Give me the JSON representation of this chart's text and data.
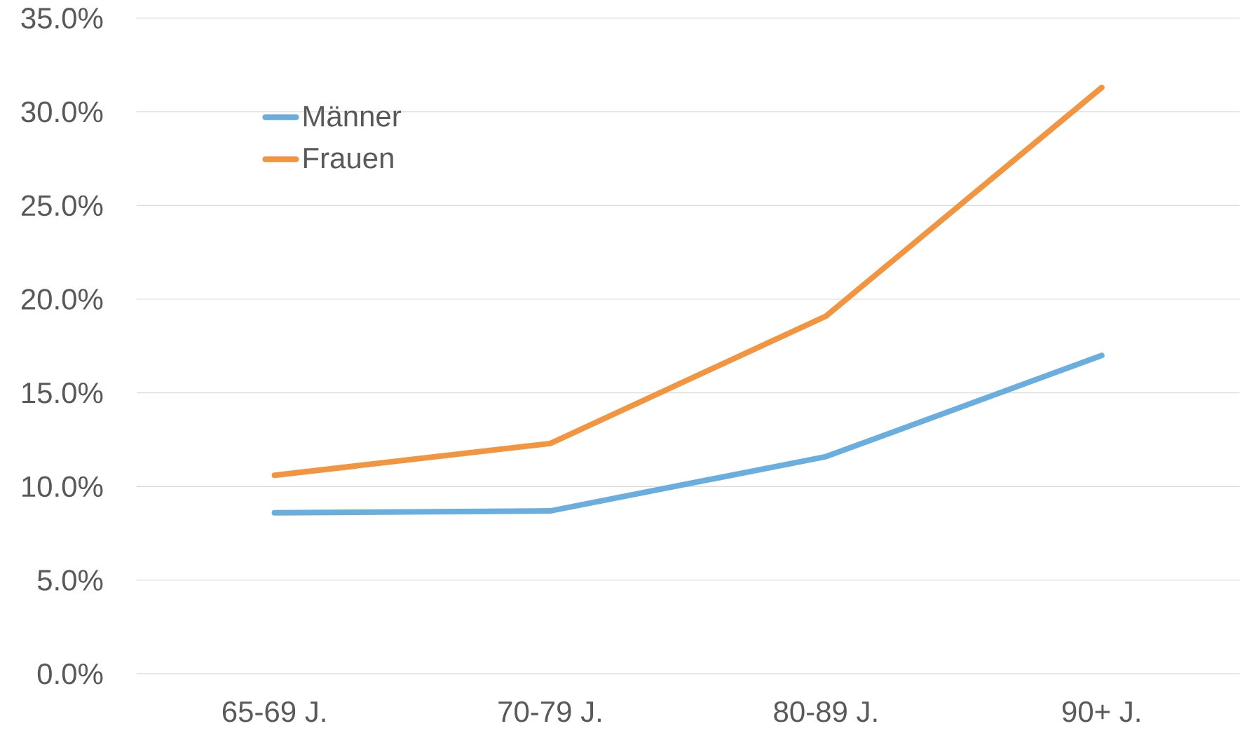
{
  "chart_data": {
    "type": "line",
    "categories": [
      "65-69 J.",
      "70-79 J.",
      "80-89 J.",
      "90+ J."
    ],
    "series": [
      {
        "name": "Männer",
        "color": "#6aaee0",
        "values": [
          8.6,
          8.7,
          11.6,
          17.0
        ]
      },
      {
        "name": "Frauen",
        "color": "#f39441",
        "values": [
          10.6,
          12.3,
          19.1,
          31.3
        ]
      }
    ],
    "ylim": [
      0,
      35
    ],
    "yticks": [
      {
        "value": 0,
        "label": "0.0%"
      },
      {
        "value": 5,
        "label": "5.0%"
      },
      {
        "value": 10,
        "label": "10.0%"
      },
      {
        "value": 15,
        "label": "15.0%"
      },
      {
        "value": 20,
        "label": "20.0%"
      },
      {
        "value": 25,
        "label": "25.0%"
      },
      {
        "value": 30,
        "label": "30.0%"
      },
      {
        "value": 35,
        "label": "35.0%"
      }
    ],
    "grid": "y",
    "legend": "top left",
    "marker": "none",
    "line_style": "solid"
  }
}
